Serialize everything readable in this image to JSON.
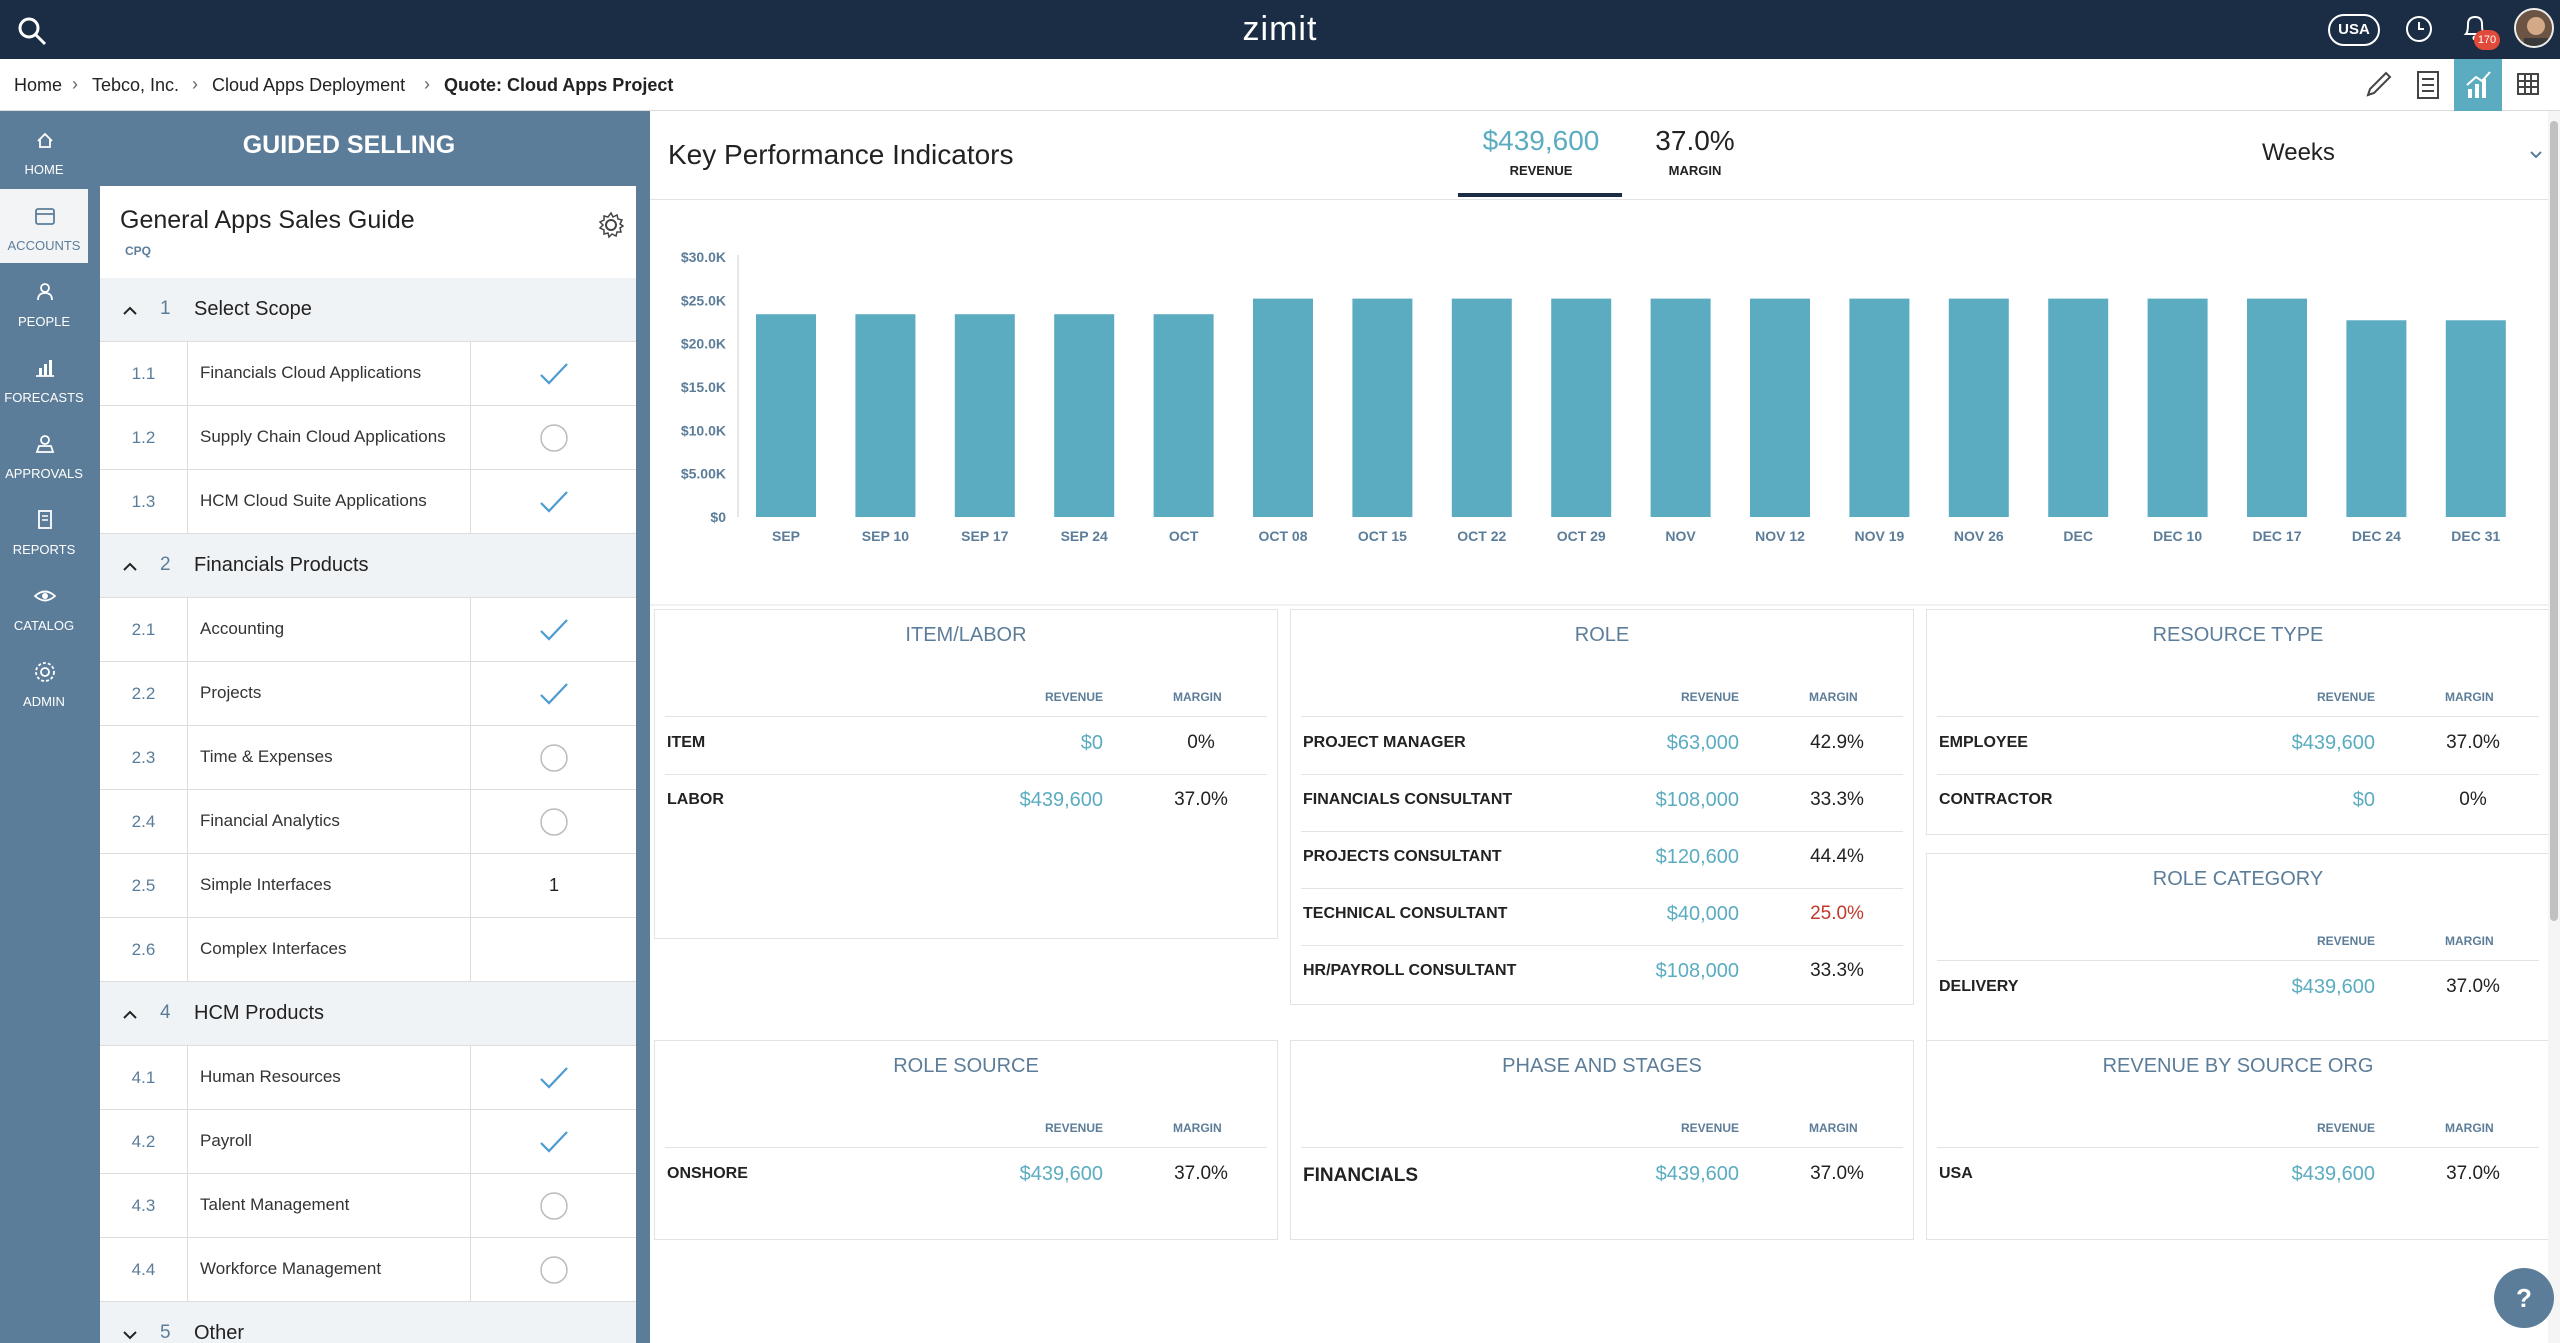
{
  "topbar": {
    "logo": "zimit",
    "region": "USA",
    "notification_count": "170"
  },
  "breadcrumb": [
    "Home",
    "Tebco, Inc.",
    "Cloud Apps Deployment",
    "Quote: Cloud Apps Project"
  ],
  "sidebar": {
    "items": [
      {
        "label": "HOME",
        "icon": "home-icon"
      },
      {
        "label": "ACCOUNTS",
        "icon": "inbox-icon",
        "active": true
      },
      {
        "label": "PEOPLE",
        "icon": "people-icon"
      },
      {
        "label": "FORECASTS",
        "icon": "forecast-icon"
      },
      {
        "label": "APPROVALS",
        "icon": "approvals-icon"
      },
      {
        "label": "REPORTS",
        "icon": "reports-icon"
      },
      {
        "label": "CATALOG",
        "icon": "eye-icon"
      },
      {
        "label": "ADMIN",
        "icon": "gear-icon"
      }
    ]
  },
  "guided_selling": {
    "header": "GUIDED SELLING",
    "title": "General Apps Sales Guide",
    "subtitle": "CPQ",
    "sections": [
      {
        "num": "1",
        "title": "Select Scope",
        "expanded": true,
        "rows": [
          {
            "num": "1.1",
            "label": "Financials Cloud Applications",
            "status": "check"
          },
          {
            "num": "1.2",
            "label": "Supply Chain Cloud Applications",
            "status": "empty"
          },
          {
            "num": "1.3",
            "label": "HCM Cloud Suite Applications",
            "status": "check"
          }
        ]
      },
      {
        "num": "2",
        "title": "Financials Products",
        "expanded": true,
        "rows": [
          {
            "num": "2.1",
            "label": "Accounting",
            "status": "check"
          },
          {
            "num": "2.2",
            "label": "Projects",
            "status": "check"
          },
          {
            "num": "2.3",
            "label": "Time & Expenses",
            "status": "empty"
          },
          {
            "num": "2.4",
            "label": "Financial Analytics",
            "status": "empty"
          },
          {
            "num": "2.5",
            "label": "Simple Interfaces",
            "status": "value",
            "value": "1"
          },
          {
            "num": "2.6",
            "label": "Complex Interfaces",
            "status": "none"
          }
        ]
      },
      {
        "num": "4",
        "title": "HCM Products",
        "expanded": true,
        "rows": [
          {
            "num": "4.1",
            "label": "Human Resources",
            "status": "check"
          },
          {
            "num": "4.2",
            "label": "Payroll",
            "status": "check"
          },
          {
            "num": "4.3",
            "label": "Talent Management",
            "status": "empty"
          },
          {
            "num": "4.4",
            "label": "Workforce Management",
            "status": "empty"
          }
        ]
      },
      {
        "num": "5",
        "title": "Other",
        "expanded": false,
        "rows": []
      }
    ]
  },
  "kpi": {
    "title": "Key Performance Indicators",
    "revenue_value": "$439,600",
    "revenue_label": "REVENUE",
    "margin_value": "37.0%",
    "margin_label": "MARGIN",
    "period": "Weeks"
  },
  "chart_data": {
    "type": "bar",
    "categories": [
      "SEP",
      "SEP 10",
      "SEP 17",
      "SEP 24",
      "OCT",
      "OCT 08",
      "OCT 15",
      "OCT 22",
      "OCT 29",
      "NOV",
      "NOV 12",
      "NOV 19",
      "NOV 26",
      "DEC",
      "DEC 10",
      "DEC 17",
      "DEC 24",
      "DEC 31"
    ],
    "values": [
      23400,
      23400,
      23400,
      23400,
      23400,
      25200,
      25200,
      25200,
      25200,
      25200,
      25200,
      25200,
      25200,
      25200,
      25200,
      25200,
      22700,
      22700
    ],
    "ylim": [
      0,
      30000
    ],
    "yticks": [
      "$0",
      "$5.00K",
      "$10.0K",
      "$15.0K",
      "$20.0K",
      "$25.0K",
      "$30.0K"
    ],
    "color": "#5bacc0",
    "grid": false
  },
  "cards": [
    {
      "title": "ITEM/LABOR",
      "rev_label": "REVENUE",
      "mar_label": "MARGIN",
      "rows": [
        {
          "name": "ITEM",
          "revenue": "$0",
          "margin": "0%"
        },
        {
          "name": "LABOR",
          "revenue": "$439,600",
          "margin": "37.0%"
        }
      ]
    },
    {
      "title": "ROLE",
      "rev_label": "REVENUE",
      "mar_label": "MARGIN",
      "rows": [
        {
          "name": "PROJECT MANAGER",
          "revenue": "$63,000",
          "margin": "42.9%"
        },
        {
          "name": "FINANCIALS CONSULTANT",
          "revenue": "$108,000",
          "margin": "33.3%"
        },
        {
          "name": "PROJECTS CONSULTANT",
          "revenue": "$120,600",
          "margin": "44.4%"
        },
        {
          "name": "TECHNICAL CONSULTANT",
          "revenue": "$40,000",
          "margin": "25.0%",
          "alert": true
        },
        {
          "name": "HR/PAYROLL CONSULTANT",
          "revenue": "$108,000",
          "margin": "33.3%"
        }
      ]
    },
    {
      "title": "RESOURCE TYPE",
      "rev_label": "REVENUE",
      "mar_label": "MARGIN",
      "rows": [
        {
          "name": "EMPLOYEE",
          "revenue": "$439,600",
          "margin": "37.0%"
        },
        {
          "name": "CONTRACTOR",
          "revenue": "$0",
          "margin": "0%"
        }
      ]
    },
    {
      "title": "ROLE CATEGORY",
      "rev_label": "REVENUE",
      "mar_label": "MARGIN",
      "rows": [
        {
          "name": "DELIVERY",
          "revenue": "$439,600",
          "margin": "37.0%"
        }
      ]
    },
    {
      "title": "ROLE SOURCE",
      "rev_label": "REVENUE",
      "mar_label": "MARGIN",
      "rows": [
        {
          "name": "ONSHORE",
          "revenue": "$439,600",
          "margin": "37.0%"
        }
      ]
    },
    {
      "title": "PHASE AND STAGES",
      "rev_label": "REVENUE",
      "mar_label": "MARGIN",
      "rows": [
        {
          "name": "FINANCIALS",
          "revenue": "$439,600",
          "margin": "37.0%"
        }
      ]
    },
    {
      "title": "REVENUE BY SOURCE ORG",
      "rev_label": "REVENUE",
      "mar_label": "MARGIN",
      "rows": [
        {
          "name": "USA",
          "revenue": "$439,600",
          "margin": "37.0%"
        }
      ]
    }
  ],
  "colors": {
    "navy": "#1b2d45",
    "slate": "#5c7d99",
    "teal": "#5bacc0",
    "alert": "#c0392b"
  },
  "help_label": "?"
}
